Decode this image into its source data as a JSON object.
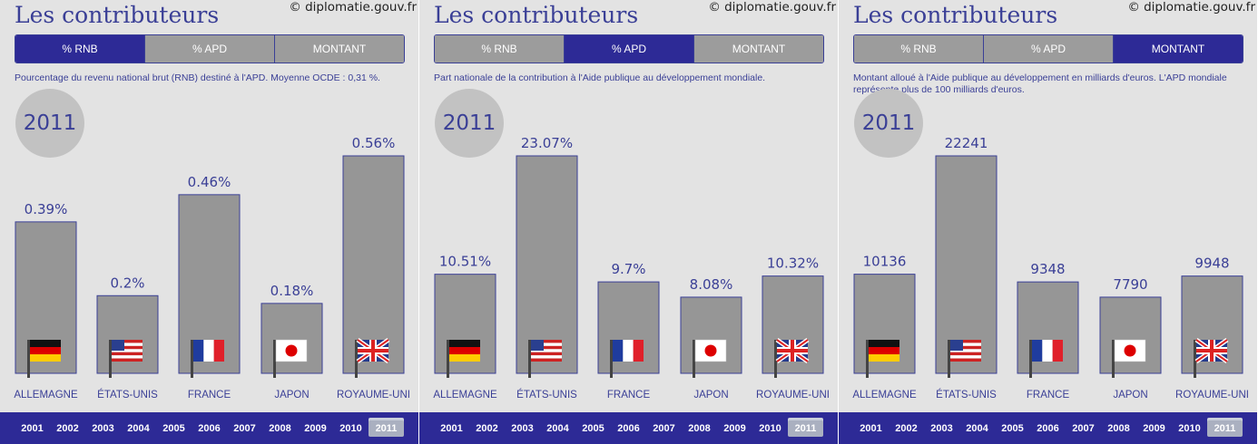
{
  "header": {
    "title": "Les contributeurs",
    "credit": "© diplomatie.gouv.fr"
  },
  "tabs": [
    "% RNB",
    "% APD",
    "MONTANT"
  ],
  "selected_year": "2011",
  "years": [
    "2001",
    "2002",
    "2003",
    "2004",
    "2005",
    "2006",
    "2007",
    "2008",
    "2009",
    "2010",
    "2011"
  ],
  "colors": {
    "accent": "#2d2a96",
    "bar": "#969696",
    "text": "#3a3f96",
    "background": "#e3e3e3"
  },
  "countries": [
    {
      "name": "ALLEMAGNE",
      "flag": "germany-flag-icon"
    },
    {
      "name": "ÉTATS-UNIS",
      "flag": "usa-flag-icon"
    },
    {
      "name": "FRANCE",
      "flag": "france-flag-icon"
    },
    {
      "name": "JAPON",
      "flag": "japan-flag-icon"
    },
    {
      "name": "ROYAUME-UNI",
      "flag": "uk-flag-icon"
    }
  ],
  "panels": [
    {
      "active_tab": 0,
      "description": "Pourcentage du revenu national brut (RNB) destiné à l'APD. Moyenne OCDE : 0,31 %."
    },
    {
      "active_tab": 1,
      "description": "Part nationale de la contribution à l'Aide publique au développement mondiale."
    },
    {
      "active_tab": 2,
      "description": "Montant alloué à l'Aide publique au développement en milliards d'euros. L'APD mondiale représente plus de 100 milliards d'euros."
    }
  ],
  "chart_data": [
    {
      "type": "bar",
      "title": "",
      "categories": [
        "ALLEMAGNE",
        "ÉTATS-UNIS",
        "FRANCE",
        "JAPON",
        "ROYAUME-UNI"
      ],
      "values": [
        0.39,
        0.2,
        0.46,
        0.18,
        0.56
      ],
      "labels": [
        "0.39%",
        "0.2%",
        "0.46%",
        "0.18%",
        "0.56%"
      ],
      "unit": "%",
      "ylim": [
        0,
        0.56
      ]
    },
    {
      "type": "bar",
      "title": "",
      "categories": [
        "ALLEMAGNE",
        "ÉTATS-UNIS",
        "FRANCE",
        "JAPON",
        "ROYAUME-UNI"
      ],
      "values": [
        10.51,
        23.07,
        9.7,
        8.08,
        10.32
      ],
      "labels": [
        "10.51%",
        "23.07%",
        "9.7%",
        "8.08%",
        "10.32%"
      ],
      "unit": "%",
      "ylim": [
        0,
        23.07
      ]
    },
    {
      "type": "bar",
      "title": "",
      "categories": [
        "ALLEMAGNE",
        "ÉTATS-UNIS",
        "FRANCE",
        "JAPON",
        "ROYAUME-UNI"
      ],
      "values": [
        10136,
        22241,
        9348,
        7790,
        9948
      ],
      "labels": [
        "10136",
        "22241",
        "9348",
        "7790",
        "9948"
      ],
      "unit": "",
      "ylim": [
        0,
        22241
      ]
    }
  ]
}
